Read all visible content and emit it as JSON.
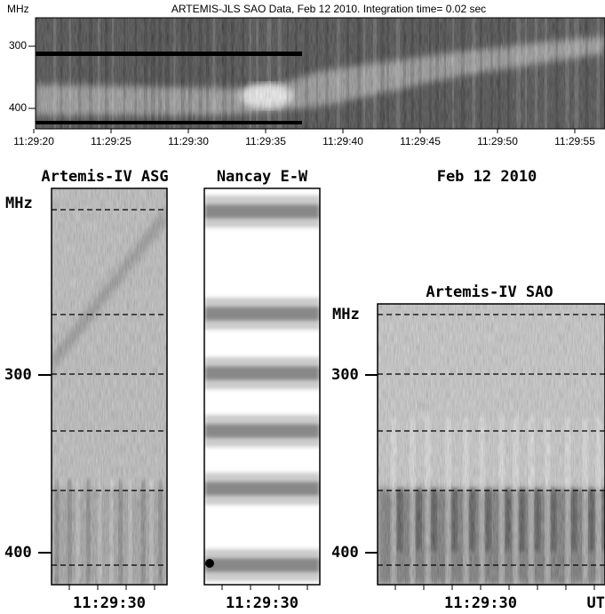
{
  "header": {
    "title": "ARTEMIS-JLS SAO Data, Feb 12 2010. Integration time= 0.02 sec",
    "y_unit": "MHz",
    "y_ticks": [
      300,
      400
    ],
    "x_ticks": [
      "11:29:20",
      "11:29:25",
      "11:29:30",
      "11:29:35",
      "11:29:40",
      "11:29:45",
      "11:29:50",
      "11:29:55"
    ]
  },
  "date": "Feb 12 2010",
  "panels": [
    {
      "title": "Artemis-IV ASG",
      "y_unit": "MHz",
      "y_ticks": [
        300,
        400
      ],
      "x_tick": "11:29:30"
    },
    {
      "title": "Nancay E-W",
      "x_tick": "11:29:30"
    },
    {
      "title": "Artemis-IV SAO",
      "y_unit": "MHz",
      "y_ticks": [
        300,
        400
      ],
      "x_tick": "11:29:30",
      "x_unit": "UT"
    }
  ]
}
